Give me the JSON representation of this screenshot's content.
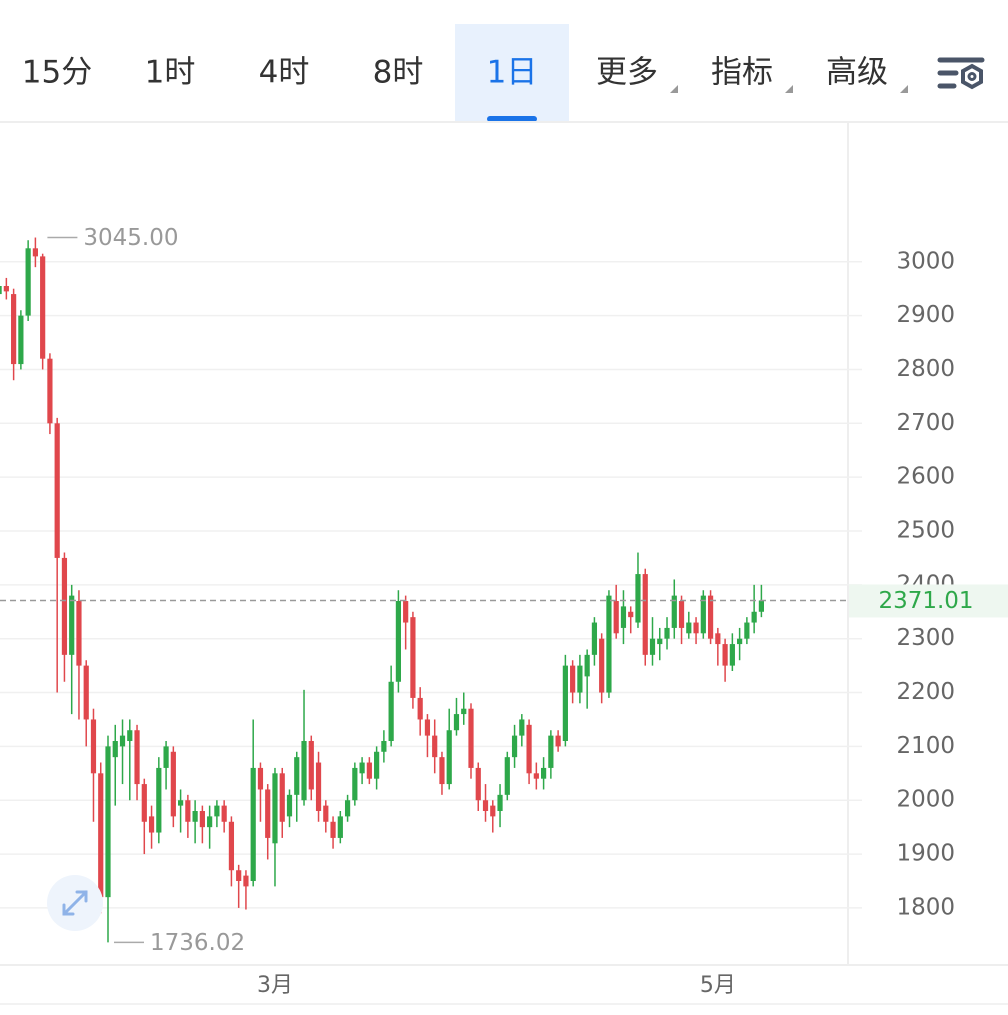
{
  "toolbar": {
    "tabs": [
      "15分",
      "1时",
      "4时",
      "8时",
      "1日",
      "更多",
      "指标",
      "高级"
    ],
    "active": 4
  },
  "chart_data": {
    "type": "candlestick",
    "categories": [
      null,
      null,
      null,
      null,
      null,
      null,
      null,
      null,
      null,
      null,
      null,
      null,
      null,
      null,
      null,
      null,
      null,
      null,
      null,
      null,
      null,
      null,
      null,
      null,
      null,
      null,
      null,
      null,
      null,
      null,
      null,
      null,
      null,
      null,
      null,
      null,
      null,
      null,
      "3月",
      null,
      null,
      null,
      null,
      null,
      null,
      null,
      null,
      null,
      null,
      null,
      null,
      null,
      null,
      null,
      null,
      null,
      null,
      null,
      null,
      null,
      null,
      null,
      null,
      null,
      null,
      null,
      null,
      null,
      null,
      null,
      null,
      null,
      null,
      null,
      null,
      null,
      null,
      null,
      null,
      null,
      null,
      null,
      null,
      null,
      null,
      null,
      null,
      null,
      null,
      null,
      null,
      null,
      null,
      null,
      null,
      null,
      null,
      null,
      null,
      "5月",
      null,
      null,
      null,
      null,
      null,
      null
    ],
    "open": [
      2940,
      2955,
      2940,
      2810,
      2900,
      3025,
      3010,
      2820,
      2700,
      2450,
      2270,
      2370,
      2250,
      2150,
      2050,
      1820,
      2080,
      2100,
      2110,
      2130,
      2030,
      1970,
      1940,
      2060,
      2090,
      1990,
      2000,
      1960,
      1980,
      1950,
      1970,
      1990,
      1960,
      1870,
      1860,
      1850,
      2060,
      2020,
      1920,
      2050,
      1970,
      2010,
      2000,
      2110,
      2070,
      1990,
      1960,
      1930,
      1970,
      2000,
      2050,
      2070,
      2040,
      2090,
      2110,
      2220,
      2370,
      2340,
      2190,
      2150,
      2120,
      2080,
      2030,
      2130,
      2160,
      2170,
      2060,
      2000,
      1990,
      1980,
      2010,
      2080,
      2120,
      2140,
      2050,
      2040,
      2060,
      2120,
      2110,
      2250,
      2200,
      2230,
      2270,
      2300,
      2200,
      2370,
      2320,
      2350,
      2330,
      2420,
      2270,
      2290,
      2300,
      2320,
      2370,
      2310,
      2330,
      2310,
      2380,
      2310,
      2290,
      2250,
      2290,
      2300,
      2330,
      2350
    ],
    "high": [
      2960,
      2970,
      2950,
      2910,
      3040,
      3045,
      3015,
      2830,
      2710,
      2460,
      2400,
      2390,
      2260,
      2170,
      2070,
      2120,
      2140,
      2150,
      2150,
      2140,
      2040,
      1990,
      2080,
      2110,
      2100,
      2020,
      2010,
      2000,
      1990,
      1990,
      2000,
      2000,
      1970,
      1880,
      1870,
      2150,
      2070,
      2030,
      2060,
      2060,
      2020,
      2090,
      2205,
      2120,
      2090,
      2000,
      1970,
      1980,
      2010,
      2070,
      2080,
      2080,
      2100,
      2130,
      2250,
      2390,
      2380,
      2350,
      2210,
      2160,
      2150,
      2090,
      2170,
      2190,
      2200,
      2180,
      2070,
      2030,
      2000,
      2030,
      2090,
      2140,
      2160,
      2150,
      2070,
      2080,
      2130,
      2130,
      2270,
      2260,
      2270,
      2280,
      2340,
      2310,
      2390,
      2400,
      2390,
      2360,
      2460,
      2430,
      2340,
      2320,
      2340,
      2410,
      2380,
      2350,
      2340,
      2390,
      2390,
      2320,
      2300,
      2310,
      2320,
      2340,
      2400,
      2400
    ],
    "low": [
      2880,
      2930,
      2780,
      2800,
      2890,
      2990,
      2800,
      2680,
      2200,
      2220,
      2160,
      2150,
      2100,
      1960,
      1790,
      1736.02,
      1990,
      2030,
      2000,
      2000,
      1900,
      1910,
      1920,
      2020,
      1950,
      1940,
      1930,
      1920,
      1920,
      1910,
      1950,
      1940,
      1840,
      1800,
      1797,
      1840,
      1960,
      1890,
      1840,
      1930,
      1950,
      1960,
      1990,
      2000,
      1960,
      1940,
      1910,
      1920,
      1960,
      1990,
      2030,
      2030,
      2020,
      2070,
      2100,
      2200,
      2280,
      2170,
      2120,
      2080,
      2050,
      2010,
      2020,
      2120,
      2140,
      2040,
      1980,
      1960,
      1940,
      1950,
      2000,
      2060,
      2100,
      2030,
      2020,
      2020,
      2040,
      2090,
      2100,
      2180,
      2180,
      2170,
      2250,
      2180,
      2190,
      2300,
      2290,
      2310,
      2320,
      2250,
      2250,
      2260,
      2280,
      2300,
      2290,
      2300,
      2290,
      2300,
      2290,
      2250,
      2220,
      2240,
      2260,
      2290,
      2310,
      2340
    ],
    "close": [
      2955,
      2945,
      2810,
      2900,
      3025,
      3010,
      2820,
      2700,
      2450,
      2270,
      2380,
      2250,
      2150,
      2050,
      1820,
      2100,
      2110,
      2120,
      2130,
      2030,
      1960,
      1940,
      2060,
      2100,
      1970,
      2000,
      1960,
      1980,
      1950,
      1970,
      1990,
      1960,
      1870,
      1850,
      1840,
      2060,
      2020,
      1930,
      2050,
      1960,
      2010,
      2080,
      2110,
      2020,
      1980,
      1960,
      1930,
      1970,
      2000,
      2060,
      2070,
      2040,
      2090,
      2110,
      2220,
      2370,
      2330,
      2190,
      2150,
      2120,
      2080,
      2030,
      2130,
      2160,
      2170,
      2060,
      2000,
      1980,
      1970,
      2010,
      2080,
      2120,
      2150,
      2050,
      2040,
      2060,
      2120,
      2100,
      2250,
      2200,
      2250,
      2270,
      2330,
      2200,
      2380,
      2310,
      2360,
      2340,
      2420,
      2270,
      2300,
      2300,
      2320,
      2380,
      2320,
      2330,
      2310,
      2380,
      2300,
      2290,
      2250,
      2290,
      2300,
      2330,
      2350,
      2371.01
    ],
    "up_color": "#2ea84a",
    "down_color": "#e0474c",
    "ylim": [
      1694,
      3254
    ],
    "yticks": [
      1800,
      1900,
      2000,
      2100,
      2200,
      2300,
      2400,
      2500,
      2600,
      2700,
      2800,
      2900,
      3000
    ],
    "grid": true,
    "last_price": 2371.01,
    "high_marker": {
      "value": 3045,
      "label": "3045.00"
    },
    "low_marker": {
      "value": 1736.02,
      "label": "1736.02"
    }
  }
}
